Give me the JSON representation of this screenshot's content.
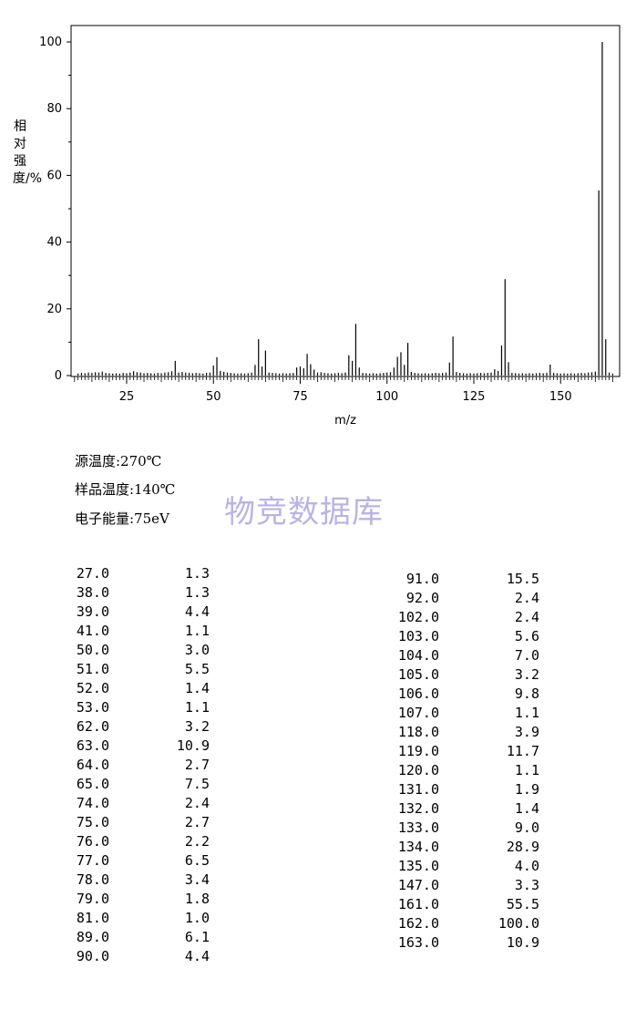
{
  "chart_data": {
    "type": "bar",
    "title": "",
    "xlabel": "m/z",
    "ylabel": "相对强度/%",
    "xlim": [
      9,
      167
    ],
    "ylim": [
      0,
      105
    ],
    "x_ticks": [
      25,
      50,
      75,
      100,
      125,
      150
    ],
    "y_ticks": [
      0,
      20,
      40,
      60,
      80,
      100
    ],
    "grid": false,
    "peaks": [
      [
        11,
        0.6
      ],
      [
        12,
        0.8
      ],
      [
        13,
        0.7
      ],
      [
        14,
        0.9
      ],
      [
        15,
        0.8
      ],
      [
        16,
        1.0
      ],
      [
        17,
        0.9
      ],
      [
        18,
        1.2
      ],
      [
        19,
        0.8
      ],
      [
        20,
        0.7
      ],
      [
        21,
        0.6
      ],
      [
        22,
        0.7
      ],
      [
        23,
        0.6
      ],
      [
        24,
        0.8
      ],
      [
        25,
        0.7
      ],
      [
        26,
        0.9
      ],
      [
        27,
        1.3
      ],
      [
        28,
        1.0
      ],
      [
        29,
        0.9
      ],
      [
        30,
        0.7
      ],
      [
        31,
        0.8
      ],
      [
        32,
        0.7
      ],
      [
        33,
        0.6
      ],
      [
        34,
        0.8
      ],
      [
        35,
        0.7
      ],
      [
        36,
        0.9
      ],
      [
        37,
        1.0
      ],
      [
        38,
        1.3
      ],
      [
        39,
        4.4
      ],
      [
        40,
        0.9
      ],
      [
        41,
        1.1
      ],
      [
        42,
        0.9
      ],
      [
        43,
        0.8
      ],
      [
        44,
        0.7
      ],
      [
        45,
        0.8
      ],
      [
        46,
        0.7
      ],
      [
        47,
        0.6
      ],
      [
        48,
        0.8
      ],
      [
        49,
        0.9
      ],
      [
        50,
        3.0
      ],
      [
        51,
        5.5
      ],
      [
        52,
        1.4
      ],
      [
        53,
        1.1
      ],
      [
        54,
        0.9
      ],
      [
        55,
        0.8
      ],
      [
        56,
        0.7
      ],
      [
        57,
        0.6
      ],
      [
        58,
        0.7
      ],
      [
        59,
        0.6
      ],
      [
        60,
        0.7
      ],
      [
        61,
        0.9
      ],
      [
        62,
        3.2
      ],
      [
        63,
        10.9
      ],
      [
        64,
        2.7
      ],
      [
        65,
        7.5
      ],
      [
        66,
        0.9
      ],
      [
        67,
        0.8
      ],
      [
        68,
        0.7
      ],
      [
        69,
        0.6
      ],
      [
        70,
        0.7
      ],
      [
        71,
        0.6
      ],
      [
        72,
        0.7
      ],
      [
        73,
        0.8
      ],
      [
        74,
        2.4
      ],
      [
        75,
        2.7
      ],
      [
        76,
        2.2
      ],
      [
        77,
        6.5
      ],
      [
        78,
        3.4
      ],
      [
        79,
        1.8
      ],
      [
        80,
        0.9
      ],
      [
        81,
        1.0
      ],
      [
        82,
        0.8
      ],
      [
        83,
        0.7
      ],
      [
        84,
        0.6
      ],
      [
        85,
        0.7
      ],
      [
        86,
        0.8
      ],
      [
        87,
        0.7
      ],
      [
        88,
        0.9
      ],
      [
        89,
        6.1
      ],
      [
        90,
        4.4
      ],
      [
        91,
        15.5
      ],
      [
        92,
        2.4
      ],
      [
        93,
        0.8
      ],
      [
        94,
        0.7
      ],
      [
        95,
        0.6
      ],
      [
        96,
        0.7
      ],
      [
        97,
        0.6
      ],
      [
        98,
        0.7
      ],
      [
        99,
        0.8
      ],
      [
        100,
        0.9
      ],
      [
        101,
        1.0
      ],
      [
        102,
        2.4
      ],
      [
        103,
        5.6
      ],
      [
        104,
        7.0
      ],
      [
        105,
        3.2
      ],
      [
        106,
        9.8
      ],
      [
        107,
        1.1
      ],
      [
        108,
        0.8
      ],
      [
        109,
        0.7
      ],
      [
        110,
        0.6
      ],
      [
        111,
        0.7
      ],
      [
        112,
        0.6
      ],
      [
        113,
        0.7
      ],
      [
        114,
        0.8
      ],
      [
        115,
        0.7
      ],
      [
        116,
        0.8
      ],
      [
        117,
        0.9
      ],
      [
        118,
        3.9
      ],
      [
        119,
        11.7
      ],
      [
        120,
        1.1
      ],
      [
        121,
        0.8
      ],
      [
        122,
        0.7
      ],
      [
        123,
        0.6
      ],
      [
        124,
        0.7
      ],
      [
        125,
        0.6
      ],
      [
        126,
        0.7
      ],
      [
        127,
        0.8
      ],
      [
        128,
        0.7
      ],
      [
        129,
        0.8
      ],
      [
        130,
        0.9
      ],
      [
        131,
        1.9
      ],
      [
        132,
        1.4
      ],
      [
        133,
        9.0
      ],
      [
        134,
        28.9
      ],
      [
        135,
        4.0
      ],
      [
        136,
        0.8
      ],
      [
        137,
        0.7
      ],
      [
        138,
        0.6
      ],
      [
        139,
        0.7
      ],
      [
        140,
        0.6
      ],
      [
        141,
        0.7
      ],
      [
        142,
        0.6
      ],
      [
        143,
        0.7
      ],
      [
        144,
        0.8
      ],
      [
        145,
        0.7
      ],
      [
        146,
        0.8
      ],
      [
        147,
        3.3
      ],
      [
        148,
        0.8
      ],
      [
        149,
        0.7
      ],
      [
        150,
        0.6
      ],
      [
        151,
        0.7
      ],
      [
        152,
        0.6
      ],
      [
        153,
        0.7
      ],
      [
        154,
        0.6
      ],
      [
        155,
        0.7
      ],
      [
        156,
        0.8
      ],
      [
        157,
        0.7
      ],
      [
        158,
        0.9
      ],
      [
        159,
        1.0
      ],
      [
        160,
        1.2
      ],
      [
        161,
        55.5
      ],
      [
        162,
        100.0
      ],
      [
        163,
        10.9
      ],
      [
        164,
        0.9
      ],
      [
        165,
        0.6
      ]
    ]
  },
  "conditions": {
    "source_temp": "源温度:270℃",
    "sample_temp": "样品温度:140℃",
    "electron_energy": "电子能量:75eV"
  },
  "watermark": "物竞数据库",
  "table_left": [
    [
      "27.0",
      "1.3"
    ],
    [
      "38.0",
      "1.3"
    ],
    [
      "39.0",
      "4.4"
    ],
    [
      "41.0",
      "1.1"
    ],
    [
      "50.0",
      "3.0"
    ],
    [
      "51.0",
      "5.5"
    ],
    [
      "52.0",
      "1.4"
    ],
    [
      "53.0",
      "1.1"
    ],
    [
      "62.0",
      "3.2"
    ],
    [
      "63.0",
      "10.9"
    ],
    [
      "64.0",
      "2.7"
    ],
    [
      "65.0",
      "7.5"
    ],
    [
      "74.0",
      "2.4"
    ],
    [
      "75.0",
      "2.7"
    ],
    [
      "76.0",
      "2.2"
    ],
    [
      "77.0",
      "6.5"
    ],
    [
      "78.0",
      "3.4"
    ],
    [
      "79.0",
      "1.8"
    ],
    [
      "81.0",
      "1.0"
    ],
    [
      "89.0",
      "6.1"
    ],
    [
      "90.0",
      "4.4"
    ]
  ],
  "table_right": [
    [
      "91.0",
      "15.5"
    ],
    [
      "92.0",
      "2.4"
    ],
    [
      "102.0",
      "2.4"
    ],
    [
      "103.0",
      "5.6"
    ],
    [
      "104.0",
      "7.0"
    ],
    [
      "105.0",
      "3.2"
    ],
    [
      "106.0",
      "9.8"
    ],
    [
      "107.0",
      "1.1"
    ],
    [
      "118.0",
      "3.9"
    ],
    [
      "119.0",
      "11.7"
    ],
    [
      "120.0",
      "1.1"
    ],
    [
      "131.0",
      "1.9"
    ],
    [
      "132.0",
      "1.4"
    ],
    [
      "133.0",
      "9.0"
    ],
    [
      "134.0",
      "28.9"
    ],
    [
      "135.0",
      "4.0"
    ],
    [
      "147.0",
      "3.3"
    ],
    [
      "161.0",
      "55.5"
    ],
    [
      "162.0",
      "100.0"
    ],
    [
      "163.0",
      "10.9"
    ]
  ]
}
